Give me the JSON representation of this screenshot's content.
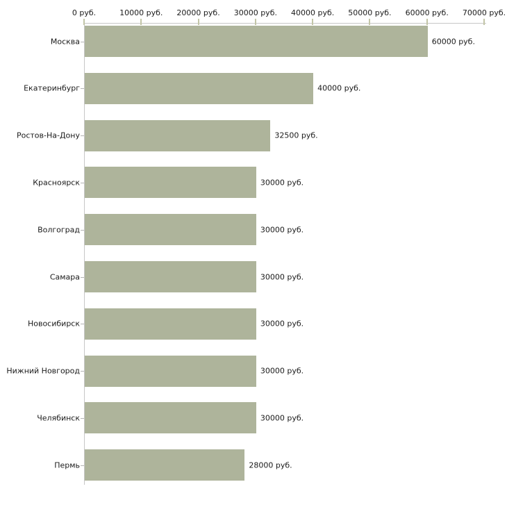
{
  "chart_data": {
    "type": "bar",
    "orientation": "horizontal",
    "title": "",
    "xlabel": "",
    "ylabel": "",
    "categories": [
      "Москва",
      "Екатеринбург",
      "Ростов-На-Дону",
      "Красноярск",
      "Волгоград",
      "Самара",
      "Новосибирск",
      "Нижний Новгород",
      "Челябинск",
      "Пермь"
    ],
    "values": [
      60000,
      40000,
      32500,
      30000,
      30000,
      30000,
      30000,
      30000,
      30000,
      28000
    ],
    "value_labels": [
      "60000 руб.",
      "40000 руб.",
      "32500 руб.",
      "30000 руб.",
      "30000 руб.",
      "30000 руб.",
      "30000 руб.",
      "30000 руб.",
      "30000 руб.",
      "28000 руб."
    ],
    "x_ticks": [
      0,
      10000,
      20000,
      30000,
      40000,
      50000,
      60000,
      70000
    ],
    "x_tick_labels": [
      "0 руб.",
      "10000 руб.",
      "20000 руб.",
      "30000 руб.",
      "40000 руб.",
      "50000 руб.",
      "60000 руб.",
      "70000 руб."
    ],
    "xlim": [
      0,
      70000
    ],
    "grid": false,
    "legend": null,
    "colors": {
      "bar": "#aeb49b",
      "axis_line": "#c6c6c6",
      "x_tick_mark": "#c2c5a7",
      "category_tick_mark": "#b4b4b4",
      "text": "#1a1a1a",
      "background": "#ffffff"
    }
  }
}
